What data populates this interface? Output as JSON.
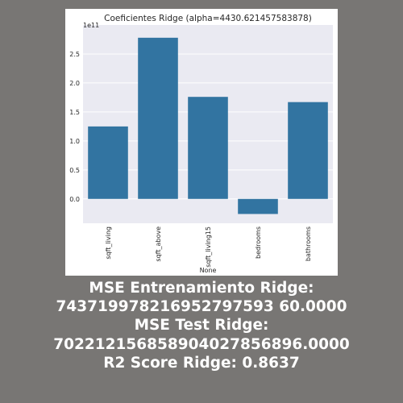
{
  "chart_data": {
    "type": "bar",
    "title": "Coeficientes Ridge (alpha=4430.621457583878)",
    "xlabel": "None",
    "ylabel": "",
    "offset_label": "1e11",
    "categories": [
      "sqft_living",
      "sqft_above",
      "sqft_living15",
      "bedrooms",
      "bathrooms"
    ],
    "values": [
      1.25,
      2.78,
      1.76,
      -0.26,
      1.67
    ],
    "ylim": [
      -0.42,
      3.0
    ],
    "yticks": [
      0.0,
      0.5,
      1.0,
      1.5,
      2.0,
      2.5
    ],
    "ytick_labels": [
      "0.0",
      "0.5",
      "1.0",
      "1.5",
      "2.0",
      "2.5"
    ],
    "grid": true,
    "bar_color": "#3274a1",
    "plot_background": "#eaeaf2"
  },
  "stats": {
    "mse_train_label": "MSE Entrenamiento Ridge:",
    "mse_train_value": "743719978216952797593 60.0000",
    "mse_test_label": "MSE Test Ridge:",
    "mse_test_value": "702212156858904027856896.0000",
    "r2_line": "R2 Score Ridge: 0.8637"
  },
  "colors": {
    "page_background": "#787674",
    "card_background": "#ffffff",
    "text": "#ffffff"
  }
}
